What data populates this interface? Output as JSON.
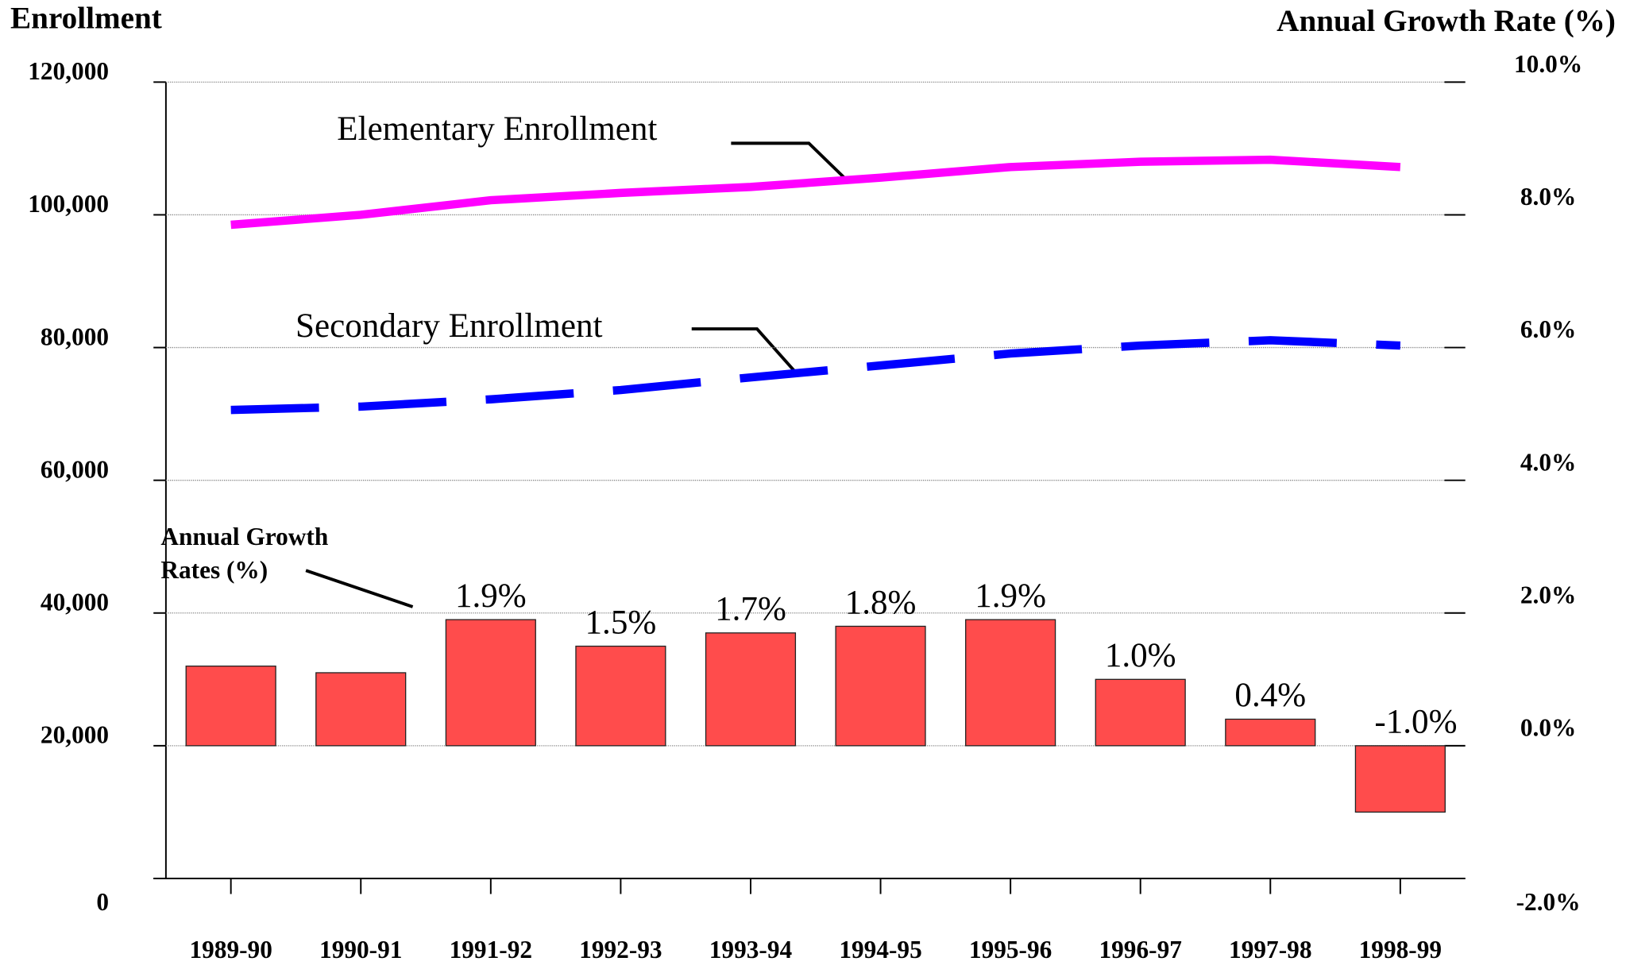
{
  "chart_data": {
    "type": "bar-line",
    "y_axis_label": "Enrollment",
    "y2_axis_label": "Annual Growth Rate (%)",
    "categories": [
      "1989-90",
      "1990-91",
      "1991-92",
      "1992-93",
      "1993-94",
      "1994-95",
      "1995-96",
      "1996-97",
      "1997-98",
      "1998-99"
    ],
    "series": [
      {
        "name": "Elementary Enrollment",
        "type": "line",
        "color": "#ff00ff",
        "values": [
          98500,
          100000,
          102200,
          103300,
          104200,
          105600,
          107200,
          108000,
          108300,
          107200
        ]
      },
      {
        "name": "Secondary Enrollment",
        "type": "line",
        "dashed": true,
        "color": "#0000ff",
        "values": [
          70600,
          71100,
          72200,
          73600,
          75500,
          77300,
          79100,
          80300,
          81100,
          80300
        ]
      },
      {
        "name": "Annual Growth Rates (%)",
        "type": "bar",
        "axis": "y2",
        "color": "#ff4c4c",
        "values": [
          1.2,
          1.1,
          1.9,
          1.5,
          1.7,
          1.8,
          1.9,
          1.0,
          0.4,
          -1.0
        ],
        "value_labels": [
          null,
          null,
          "1.9%",
          "1.5%",
          "1.7%",
          "1.8%",
          "1.9%",
          "1.0%",
          "0.4%",
          "-1.0%"
        ]
      }
    ],
    "ylim": [
      0,
      120000
    ],
    "yticks": [
      0,
      {
        "value": 20000,
        "label": "20,000"
      },
      {
        "value": 40000,
        "label": "40,000"
      },
      {
        "value": 60000,
        "label": "60,000"
      },
      {
        "value": 80000,
        "label": "80,000"
      },
      {
        "value": 100000,
        "label": "100,000"
      },
      {
        "value": 120000,
        "label": "120,000"
      }
    ],
    "y2lim": [
      -2,
      10
    ],
    "y2ticks": [
      {
        "value": -2,
        "label": "-2.0%"
      },
      {
        "value": 0,
        "label": "0.0%"
      },
      {
        "value": 2,
        "label": "2.0%"
      },
      {
        "value": 4,
        "label": "4.0%"
      },
      {
        "value": 6,
        "label": "6.0%"
      },
      {
        "value": 8,
        "label": "8.0%"
      },
      {
        "value": 10,
        "label": "10.0%"
      }
    ],
    "grid": true
  }
}
